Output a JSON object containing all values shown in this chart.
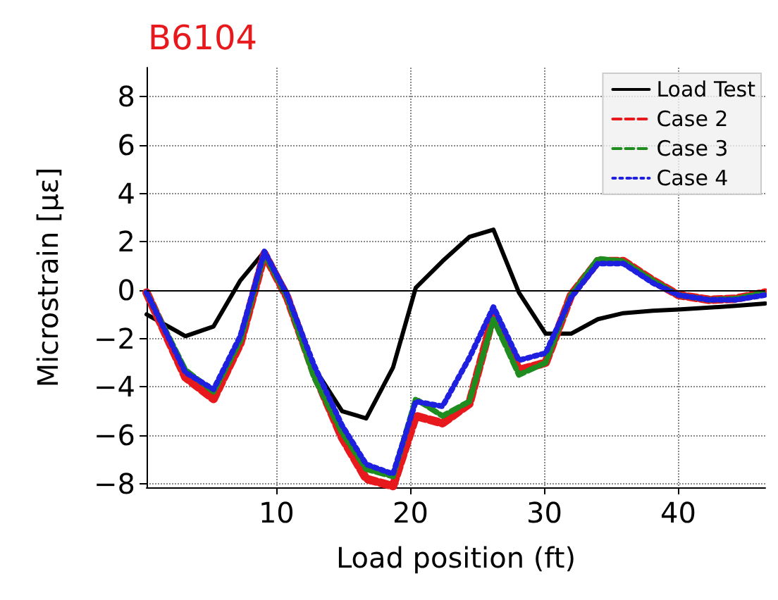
{
  "chart_data": {
    "type": "line",
    "title": "B6104",
    "xlabel": "Load position (ft)",
    "ylabel": "Microstrain [με]",
    "x": [
      0.3,
      3.2,
      5.3,
      7.3,
      9.1,
      10.8,
      12.8,
      14.9,
      16.7,
      18.7,
      20.4,
      22.4,
      24.4,
      26.2,
      28.1,
      30.1,
      32.0,
      34.0,
      35.9,
      38.1,
      40.0,
      42.3,
      44.3,
      46.5
    ],
    "series": [
      {
        "name": "Load Test",
        "color": "#000000",
        "line_style": "solid",
        "values": [
          -1.0,
          -1.9,
          -1.5,
          0.4,
          1.6,
          -0.1,
          -3.2,
          -5.0,
          -5.3,
          -3.2,
          0.1,
          1.2,
          2.2,
          2.5,
          -0.1,
          -1.8,
          -1.8,
          -1.2,
          -0.95,
          -0.85,
          -0.8,
          -0.72,
          -0.65,
          -0.55
        ]
      },
      {
        "name": "Case 2",
        "color": "#e8191c",
        "line_style": "dashed",
        "values": [
          -0.1,
          -3.6,
          -4.5,
          -2.2,
          1.5,
          -0.3,
          -3.4,
          -6.1,
          -7.8,
          -8.1,
          -5.2,
          -5.5,
          -4.7,
          -1.0,
          -3.3,
          -3.0,
          -0.2,
          1.2,
          1.2,
          0.4,
          -0.2,
          -0.4,
          -0.35,
          -0.1
        ]
      },
      {
        "name": "Case 3",
        "color": "#1e8c1e",
        "line_style": "dashed",
        "values": [
          -0.1,
          -3.3,
          -4.2,
          -2.1,
          1.5,
          -0.3,
          -3.6,
          -5.9,
          -7.4,
          -7.7,
          -4.5,
          -5.2,
          -4.6,
          -1.2,
          -3.5,
          -3.0,
          -0.2,
          1.3,
          1.2,
          0.4,
          -0.2,
          -0.4,
          -0.35,
          -0.1
        ]
      },
      {
        "name": "Case 4",
        "color": "#1f1fe0",
        "line_style": "dotted",
        "values": [
          -0.1,
          -3.4,
          -4.1,
          -1.9,
          1.6,
          -0.2,
          -3.1,
          -5.6,
          -7.2,
          -7.6,
          -4.6,
          -4.8,
          -2.8,
          -0.7,
          -2.9,
          -2.6,
          -0.3,
          1.1,
          1.1,
          0.3,
          -0.2,
          -0.4,
          -0.4,
          -0.2
        ]
      }
    ],
    "xlim": [
      0.3,
      46.5
    ],
    "xticks": [
      10,
      20,
      30,
      40
    ],
    "ylim": [
      -8.15,
      9.2
    ],
    "yticks": [
      -8,
      -6,
      -4,
      -2,
      0,
      2,
      4,
      6,
      8
    ],
    "ref_lines": [
      {
        "axis": "y",
        "value": 0,
        "color": "#000000"
      }
    ],
    "grid": true,
    "legend": "top right",
    "marker": "none"
  }
}
